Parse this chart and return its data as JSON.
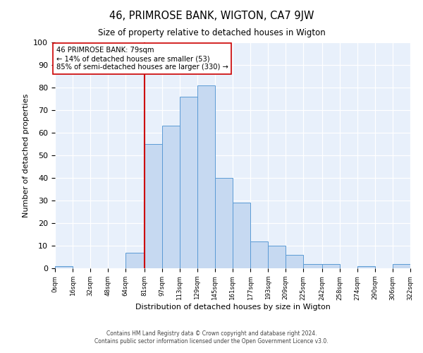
{
  "title": "46, PRIMROSE BANK, WIGTON, CA7 9JW",
  "subtitle": "Size of property relative to detached houses in Wigton",
  "xlabel": "Distribution of detached houses by size in Wigton",
  "ylabel": "Number of detached properties",
  "bin_edges": [
    0,
    16,
    32,
    48,
    64,
    81,
    97,
    113,
    129,
    145,
    161,
    177,
    193,
    209,
    225,
    242,
    258,
    274,
    290,
    306,
    322
  ],
  "bar_heights": [
    1,
    0,
    0,
    0,
    7,
    55,
    63,
    76,
    81,
    40,
    29,
    12,
    10,
    6,
    2,
    2,
    0,
    1,
    0,
    2
  ],
  "bar_color": "#c6d9f1",
  "bar_edge_color": "#5b9bd5",
  "property_line_x": 81,
  "property_line_color": "#cc0000",
  "annotation_text": "46 PRIMROSE BANK: 79sqm\n← 14% of detached houses are smaller (53)\n85% of semi-detached houses are larger (330) →",
  "annotation_box_color": "#ffffff",
  "annotation_box_edge_color": "#cc0000",
  "ylim": [
    0,
    100
  ],
  "tick_labels": [
    "0sqm",
    "16sqm",
    "32sqm",
    "48sqm",
    "64sqm",
    "81sqm",
    "97sqm",
    "113sqm",
    "129sqm",
    "145sqm",
    "161sqm",
    "177sqm",
    "193sqm",
    "209sqm",
    "225sqm",
    "242sqm",
    "258sqm",
    "274sqm",
    "290sqm",
    "306sqm",
    "322sqm"
  ],
  "footer1": "Contains HM Land Registry data © Crown copyright and database right 2024.",
  "footer2": "Contains public sector information licensed under the Open Government Licence v3.0.",
  "plot_bg_color": "#e8f0fb"
}
